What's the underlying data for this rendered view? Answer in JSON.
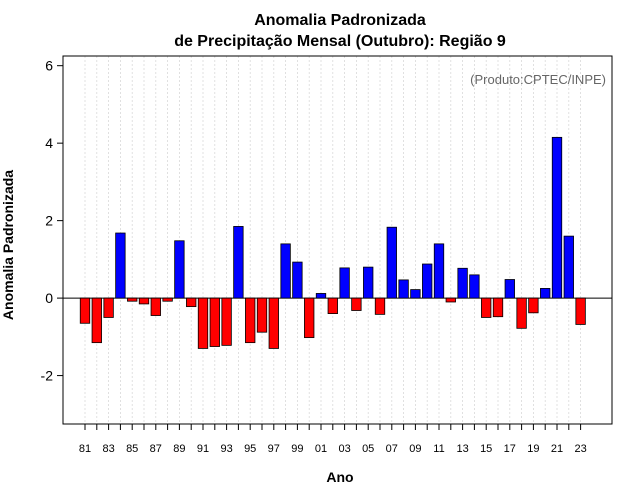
{
  "chart_data": {
    "type": "bar",
    "title": [
      "Anomalia Padronizada",
      "de Precipitação Mensal (Outubro): Região 9"
    ],
    "xlabel": "Ano",
    "ylabel": "Anomalia Padronizada",
    "annotation": "(Produto:CPTEC/INPE)",
    "ylim": [
      -3.25,
      6.25
    ],
    "yticks": [
      -2,
      0,
      2,
      4,
      6
    ],
    "yticks_labels": [
      "-2",
      "0",
      "2",
      "4",
      "6"
    ],
    "xtick_labels": [
      "81",
      "83",
      "85",
      "87",
      "89",
      "91",
      "93",
      "95",
      "97",
      "99",
      "01",
      "03",
      "05",
      "07",
      "09",
      "11",
      "13",
      "15",
      "17",
      "19",
      "21",
      "23"
    ],
    "positive_color": "#0000ff",
    "negative_color": "#ff0000",
    "categories": [
      "81",
      "82",
      "83",
      "84",
      "85",
      "86",
      "87",
      "88",
      "89",
      "90",
      "91",
      "92",
      "93",
      "94",
      "95",
      "96",
      "97",
      "98",
      "99",
      "00",
      "01",
      "02",
      "03",
      "04",
      "05",
      "06",
      "07",
      "08",
      "09",
      "10",
      "11",
      "12",
      "13",
      "14",
      "15",
      "16",
      "17",
      "18",
      "19",
      "20",
      "21",
      "22",
      "23"
    ],
    "values": [
      -0.65,
      -1.15,
      -0.5,
      1.68,
      -0.08,
      -0.15,
      -0.45,
      -0.08,
      1.48,
      -0.22,
      -1.3,
      -1.25,
      -1.22,
      1.85,
      -1.15,
      -0.88,
      -1.3,
      1.4,
      0.93,
      -1.02,
      0.12,
      -0.4,
      0.78,
      -0.32,
      0.8,
      -0.42,
      1.83,
      0.47,
      0.22,
      0.88,
      1.4,
      -0.1,
      0.77,
      0.6,
      -0.5,
      -0.48,
      0.48,
      -0.78,
      -0.38,
      0.25,
      4.15,
      1.6,
      -0.68
    ]
  }
}
